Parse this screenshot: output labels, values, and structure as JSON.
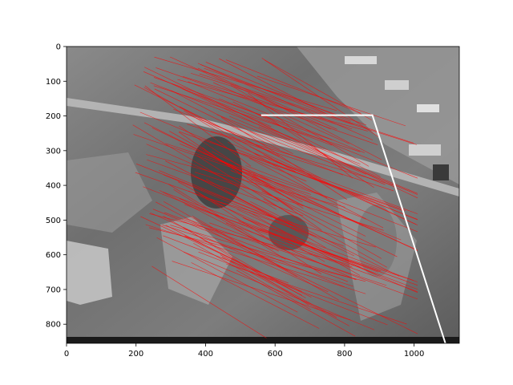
{
  "figure": {
    "background": "#ffffff",
    "photo_description_name": "aerial-grayscale-photo",
    "line_color": "#ff0000",
    "boundary_color": "#ffffff"
  },
  "axes": {
    "x_ticks": [
      "0",
      "200",
      "400",
      "600",
      "800",
      "1000"
    ],
    "y_ticks": [
      "0",
      "100",
      "200",
      "300",
      "400",
      "500",
      "600",
      "700",
      "800"
    ],
    "xlim": [
      0,
      1130
    ],
    "ylim": [
      855,
      0
    ]
  },
  "overlay": {
    "boundary_polyline": [
      [
        560,
        198
      ],
      [
        880,
        198
      ],
      [
        1090,
        855
      ]
    ]
  }
}
